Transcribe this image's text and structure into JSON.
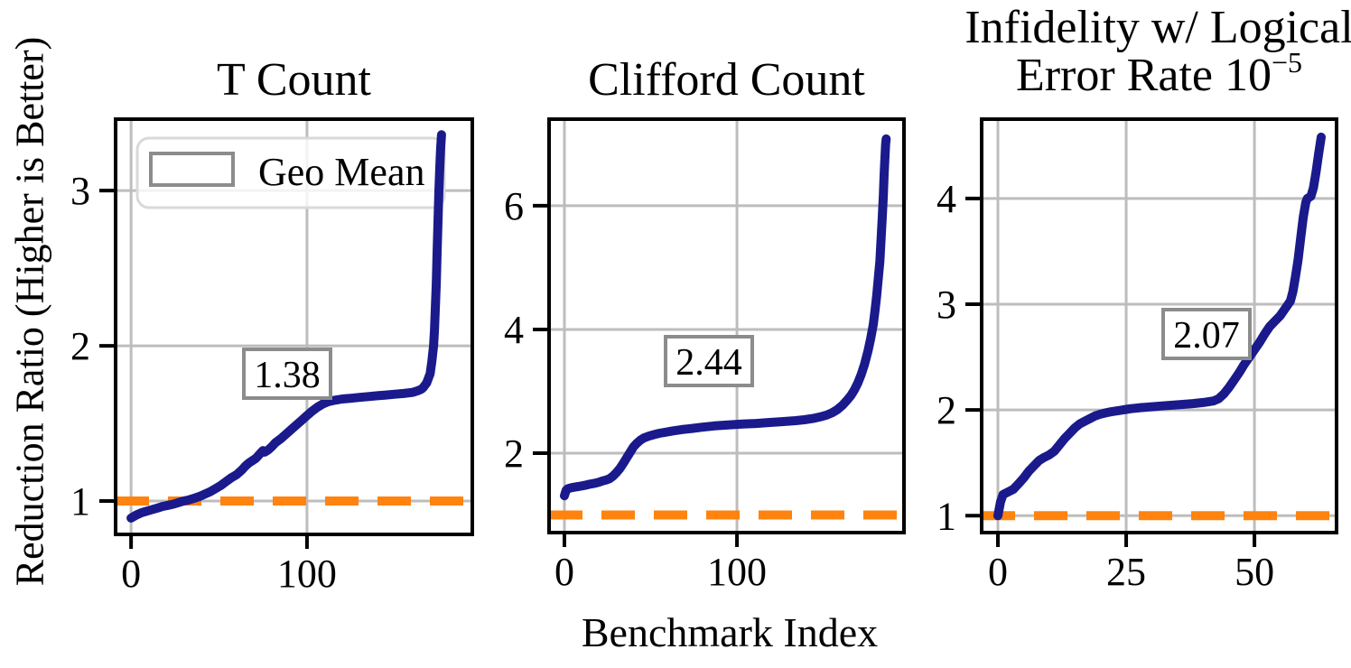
{
  "figure": {
    "ylabel": "Reduction Ratio (Higher is Better)",
    "xlabel": "Benchmark Index",
    "legend": {
      "label": "Geo Mean"
    },
    "colors": {
      "series_line": "#1a1a8c",
      "baseline_dash": "#ff830e",
      "grid": "#bdbdbd",
      "box_edge": "#8c8c8c",
      "legend_edge": "#d9d9d9",
      "spine": "#000000",
      "text": "#000000",
      "background": "#ffffff"
    }
  },
  "chart_data": [
    {
      "type": "line",
      "id": "t-count",
      "title": "T Count",
      "title_lines": [
        {
          "text": "T Count"
        }
      ],
      "geo_mean_label": "1.38",
      "baseline": 1.0,
      "xlabel_shared": "Benchmark Index",
      "xlim": [
        -8.8,
        194.0
      ],
      "ylim": [
        0.785,
        3.46
      ],
      "xticks": [
        0,
        100
      ],
      "yticks": [
        1,
        2,
        3
      ],
      "grid": true,
      "legend": "Geo Mean",
      "series": [
        [
          0,
          0.89
        ],
        [
          3,
          0.91
        ],
        [
          6,
          0.925
        ],
        [
          9,
          0.935
        ],
        [
          12,
          0.945
        ],
        [
          15,
          0.955
        ],
        [
          18,
          0.965
        ],
        [
          21,
          0.972
        ],
        [
          24,
          0.98
        ],
        [
          27,
          0.99
        ],
        [
          30,
          1.0
        ],
        [
          33,
          1.008
        ],
        [
          36,
          1.018
        ],
        [
          39,
          1.03
        ],
        [
          42,
          1.045
        ],
        [
          45,
          1.06
        ],
        [
          48,
          1.08
        ],
        [
          51,
          1.1
        ],
        [
          54,
          1.125
        ],
        [
          57,
          1.15
        ],
        [
          60,
          1.17
        ],
        [
          63,
          1.2
        ],
        [
          65,
          1.225
        ],
        [
          67,
          1.245
        ],
        [
          69,
          1.26
        ],
        [
          71,
          1.275
        ],
        [
          73,
          1.3
        ],
        [
          75,
          1.325
        ],
        [
          76,
          1.315
        ],
        [
          78,
          1.33
        ],
        [
          80,
          1.35
        ],
        [
          82,
          1.375
        ],
        [
          85,
          1.4
        ],
        [
          88,
          1.43
        ],
        [
          91,
          1.46
        ],
        [
          94,
          1.49
        ],
        [
          97,
          1.52
        ],
        [
          100,
          1.55
        ],
        [
          103,
          1.58
        ],
        [
          106,
          1.605
        ],
        [
          109,
          1.625
        ],
        [
          112,
          1.64
        ],
        [
          116,
          1.65
        ],
        [
          120,
          1.657
        ],
        [
          125,
          1.662
        ],
        [
          130,
          1.668
        ],
        [
          135,
          1.673
        ],
        [
          140,
          1.678
        ],
        [
          145,
          1.683
        ],
        [
          150,
          1.688
        ],
        [
          155,
          1.693
        ],
        [
          160,
          1.7
        ],
        [
          163,
          1.71
        ],
        [
          165,
          1.72
        ],
        [
          166,
          1.73
        ],
        [
          168,
          1.76
        ],
        [
          170,
          1.82
        ],
        [
          171,
          1.9
        ],
        [
          172,
          2.0
        ],
        [
          172.5,
          2.1
        ],
        [
          173,
          2.25
        ],
        [
          173.5,
          2.4
        ],
        [
          174,
          2.6
        ],
        [
          174.5,
          2.8
        ],
        [
          175,
          3.0
        ],
        [
          175.5,
          3.15
        ],
        [
          176,
          3.27
        ],
        [
          176.5,
          3.36
        ]
      ]
    },
    {
      "type": "line",
      "id": "clifford-count",
      "title": "Clifford Count",
      "title_lines": [
        {
          "text": "Clifford Count"
        }
      ],
      "geo_mean_label": "2.44",
      "baseline": 1.0,
      "xlim": [
        -8.9,
        196.8
      ],
      "ylim": [
        0.715,
        7.4
      ],
      "xticks": [
        0,
        100
      ],
      "yticks": [
        2,
        4,
        6
      ],
      "grid": true,
      "series": [
        [
          0,
          1.31
        ],
        [
          1,
          1.4
        ],
        [
          2,
          1.425
        ],
        [
          4,
          1.44
        ],
        [
          6,
          1.45
        ],
        [
          8,
          1.46
        ],
        [
          10,
          1.47
        ],
        [
          12,
          1.48
        ],
        [
          14,
          1.495
        ],
        [
          16,
          1.505
        ],
        [
          18,
          1.515
        ],
        [
          20,
          1.53
        ],
        [
          22,
          1.55
        ],
        [
          24,
          1.565
        ],
        [
          26,
          1.585
        ],
        [
          28,
          1.625
        ],
        [
          30,
          1.68
        ],
        [
          32,
          1.745
        ],
        [
          34,
          1.83
        ],
        [
          36,
          1.92
        ],
        [
          38,
          2.01
        ],
        [
          40,
          2.1
        ],
        [
          42,
          2.16
        ],
        [
          44,
          2.21
        ],
        [
          46,
          2.245
        ],
        [
          49,
          2.275
        ],
        [
          52,
          2.3
        ],
        [
          55,
          2.32
        ],
        [
          59,
          2.34
        ],
        [
          63,
          2.36
        ],
        [
          68,
          2.38
        ],
        [
          74,
          2.4
        ],
        [
          80,
          2.42
        ],
        [
          87,
          2.44
        ],
        [
          95,
          2.455
        ],
        [
          103,
          2.47
        ],
        [
          111,
          2.48
        ],
        [
          119,
          2.495
        ],
        [
          127,
          2.51
        ],
        [
          134,
          2.525
        ],
        [
          139,
          2.54
        ],
        [
          144,
          2.56
        ],
        [
          148,
          2.585
        ],
        [
          152,
          2.615
        ],
        [
          155,
          2.65
        ],
        [
          158,
          2.7
        ],
        [
          161,
          2.77
        ],
        [
          164,
          2.86
        ],
        [
          166,
          2.93
        ],
        [
          168,
          3.02
        ],
        [
          170,
          3.13
        ],
        [
          172,
          3.27
        ],
        [
          174,
          3.44
        ],
        [
          176,
          3.66
        ],
        [
          177.5,
          3.85
        ],
        [
          179,
          4.08
        ],
        [
          180,
          4.3
        ],
        [
          181,
          4.55
        ],
        [
          182,
          4.85
        ],
        [
          182.8,
          5.1
        ],
        [
          183.5,
          5.45
        ],
        [
          184.2,
          5.8
        ],
        [
          184.8,
          6.15
        ],
        [
          185.3,
          6.5
        ],
        [
          185.8,
          6.8
        ],
        [
          186.2,
          7.0
        ],
        [
          186.5,
          7.08
        ]
      ]
    },
    {
      "type": "line",
      "id": "infidelity",
      "title": "Infidelity w/ Logical Error Rate 10^-5",
      "title_lines": [
        {
          "text": "Infidelity w/ Logical"
        },
        {
          "base": "Error Rate 10",
          "sup": "−5"
        }
      ],
      "geo_mean_label": "2.07",
      "baseline": 1.0,
      "xlim": [
        -3.17,
        66.0
      ],
      "ylim": [
        0.84,
        4.75
      ],
      "xticks": [
        0,
        25,
        50
      ],
      "yticks": [
        1,
        2,
        3,
        4
      ],
      "grid": true,
      "series": [
        [
          0,
          1.0
        ],
        [
          0.5,
          1.13
        ],
        [
          1,
          1.2
        ],
        [
          2,
          1.225
        ],
        [
          3,
          1.25
        ],
        [
          4,
          1.3
        ],
        [
          5,
          1.355
        ],
        [
          6,
          1.42
        ],
        [
          7,
          1.47
        ],
        [
          8,
          1.52
        ],
        [
          9,
          1.55
        ],
        [
          10,
          1.575
        ],
        [
          11,
          1.61
        ],
        [
          12,
          1.67
        ],
        [
          13,
          1.73
        ],
        [
          14,
          1.78
        ],
        [
          15,
          1.83
        ],
        [
          16,
          1.87
        ],
        [
          17,
          1.895
        ],
        [
          18,
          1.92
        ],
        [
          19,
          1.945
        ],
        [
          20,
          1.96
        ],
        [
          21,
          1.972
        ],
        [
          22,
          1.982
        ],
        [
          23,
          1.99
        ],
        [
          24,
          1.998
        ],
        [
          25,
          2.005
        ],
        [
          26,
          2.012
        ],
        [
          28,
          2.022
        ],
        [
          30,
          2.03
        ],
        [
          32,
          2.038
        ],
        [
          34,
          2.045
        ],
        [
          36,
          2.052
        ],
        [
          38,
          2.06
        ],
        [
          40,
          2.07
        ],
        [
          42,
          2.085
        ],
        [
          43,
          2.105
        ],
        [
          44,
          2.15
        ],
        [
          45,
          2.21
        ],
        [
          46,
          2.28
        ],
        [
          47,
          2.35
        ],
        [
          48,
          2.43
        ],
        [
          49,
          2.5
        ],
        [
          50,
          2.57
        ],
        [
          51,
          2.64
        ],
        [
          52,
          2.72
        ],
        [
          53,
          2.79
        ],
        [
          54,
          2.84
        ],
        [
          55,
          2.89
        ],
        [
          56,
          2.96
        ],
        [
          57,
          3.03
        ],
        [
          57.5,
          3.12
        ],
        [
          58,
          3.26
        ],
        [
          58.5,
          3.42
        ],
        [
          59,
          3.62
        ],
        [
          59.5,
          3.82
        ],
        [
          60,
          3.96
        ],
        [
          60.3,
          4.0
        ],
        [
          61,
          4.02
        ],
        [
          61.5,
          4.1
        ],
        [
          62,
          4.25
        ],
        [
          62.5,
          4.42
        ],
        [
          63,
          4.58
        ]
      ]
    }
  ]
}
